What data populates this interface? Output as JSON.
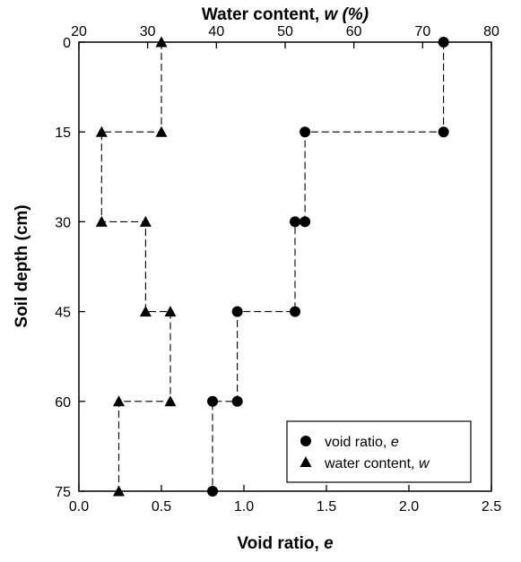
{
  "chart_data": {
    "type": "scatter",
    "step_lines": true,
    "marker_color": "#000000",
    "line_style": "dashed",
    "x_bottom": {
      "label_prefix": "Void ratio, ",
      "label_var": "e",
      "range": [
        0.0,
        2.5
      ],
      "ticks": [
        0.0,
        0.5,
        1.0,
        1.5,
        2.0,
        2.5
      ],
      "tick_labels": [
        "0.0",
        "0.5",
        "1.0",
        "1.5",
        "2.0",
        "2.5"
      ]
    },
    "x_top": {
      "label_prefix": "Water content, ",
      "label_var": "w (%)",
      "range": [
        20,
        80
      ],
      "ticks": [
        20,
        30,
        40,
        50,
        60,
        70,
        80
      ],
      "tick_labels": [
        "20",
        "30",
        "40",
        "50",
        "60",
        "70",
        "80"
      ]
    },
    "y": {
      "label": "Soil depth (cm)",
      "range": [
        0,
        75
      ],
      "inverted": true,
      "ticks": [
        0,
        15,
        30,
        45,
        60,
        75
      ],
      "tick_labels": [
        "0",
        "15",
        "30",
        "45",
        "60",
        "75"
      ]
    },
    "series": [
      {
        "name": "void ratio, ",
        "name_var": "e",
        "marker": "circle",
        "axis": "bottom",
        "points": [
          {
            "x": 2.21,
            "y": 0
          },
          {
            "x": 2.21,
            "y": 15
          },
          {
            "x": 1.37,
            "y": 15
          },
          {
            "x": 1.37,
            "y": 30
          },
          {
            "x": 1.31,
            "y": 30
          },
          {
            "x": 1.31,
            "y": 45
          },
          {
            "x": 0.96,
            "y": 45
          },
          {
            "x": 0.96,
            "y": 60
          },
          {
            "x": 0.81,
            "y": 60
          },
          {
            "x": 0.81,
            "y": 75
          }
        ]
      },
      {
        "name": "water content, ",
        "name_var": "w",
        "marker": "triangle",
        "axis": "top",
        "points": [
          {
            "x": 32.0,
            "y": 0
          },
          {
            "x": 32.0,
            "y": 15
          },
          {
            "x": 23.3,
            "y": 15
          },
          {
            "x": 23.3,
            "y": 30
          },
          {
            "x": 29.7,
            "y": 30
          },
          {
            "x": 29.7,
            "y": 45
          },
          {
            "x": 33.3,
            "y": 45
          },
          {
            "x": 33.3,
            "y": 60
          },
          {
            "x": 25.8,
            "y": 60
          },
          {
            "x": 25.8,
            "y": 75
          }
        ]
      }
    ],
    "legend": {
      "position": "bottom-right"
    },
    "grid": false
  }
}
